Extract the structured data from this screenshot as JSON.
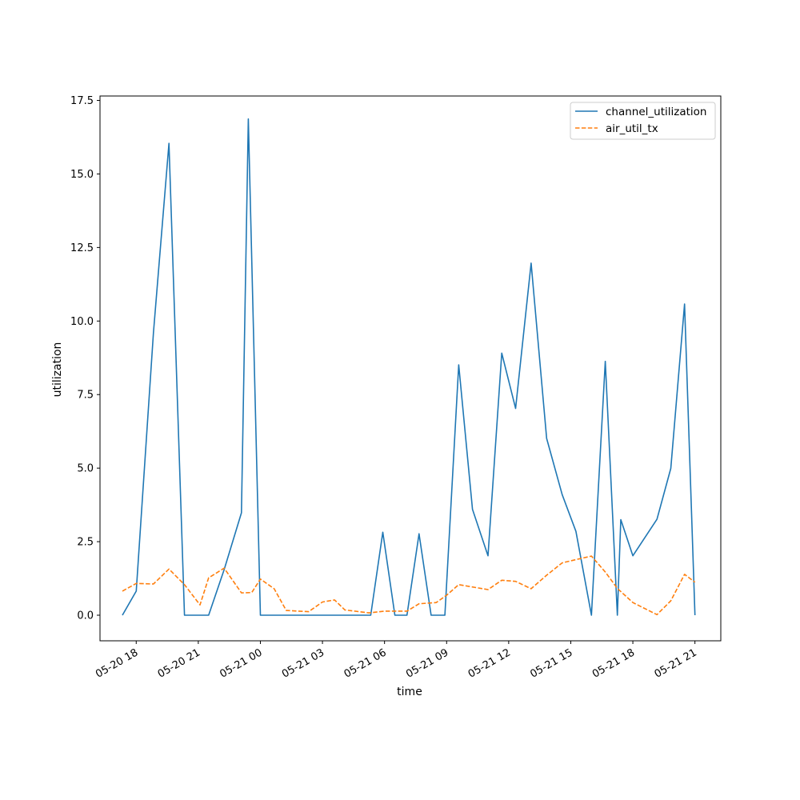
{
  "chart_data": {
    "type": "line",
    "title": "",
    "xlabel": "time",
    "ylabel": "utilization",
    "grid": false,
    "legend_position": "top-right",
    "x_tick_labels": [
      "05-20 18",
      "05-20 21",
      "05-21 00",
      "05-21 03",
      "05-21 06",
      "05-21 09",
      "05-21 12",
      "05-21 15",
      "05-21 18",
      "05-21 21"
    ],
    "y_tick_labels": [
      "0.0",
      "2.5",
      "5.0",
      "7.5",
      "10.0",
      "12.5",
      "15.0",
      "17.5"
    ],
    "ylim": [
      -0.87,
      17.65
    ],
    "xlim": [
      "2024-05-20 16:15",
      "2024-05-21 22:15"
    ],
    "series": [
      {
        "name": "channel_utilization",
        "color": "#1f77b4",
        "style": "solid",
        "x": [
          "2024-05-20 17:20",
          "2024-05-20 18:00",
          "2024-05-20 18:50",
          "2024-05-20 19:35",
          "2024-05-20 20:20",
          "2024-05-20 21:30",
          "2024-05-20 22:15",
          "2024-05-20 23:05",
          "2024-05-20 23:25",
          "2024-05-21 00:00",
          "2024-05-21 05:20",
          "2024-05-21 05:55",
          "2024-05-21 06:30",
          "2024-05-21 07:05",
          "2024-05-21 07:40",
          "2024-05-21 08:15",
          "2024-05-21 08:55",
          "2024-05-21 09:35",
          "2024-05-21 10:15",
          "2024-05-21 11:00",
          "2024-05-21 11:40",
          "2024-05-21 12:20",
          "2024-05-21 13:05",
          "2024-05-21 13:50",
          "2024-05-21 14:35",
          "2024-05-21 15:15",
          "2024-05-21 16:00",
          "2024-05-21 16:40",
          "2024-05-21 17:15",
          "2024-05-21 17:25",
          "2024-05-21 18:00",
          "2024-05-21 19:10",
          "2024-05-21 19:50",
          "2024-05-21 20:30",
          "2024-05-21 21:00"
        ],
        "values": [
          0.0,
          0.82,
          9.6,
          16.04,
          0.0,
          0.0,
          1.55,
          3.48,
          16.87,
          0.0,
          0.0,
          2.82,
          0.0,
          0.0,
          2.77,
          0.0,
          0.0,
          8.51,
          3.6,
          2.02,
          8.91,
          7.03,
          11.97,
          6.01,
          4.1,
          2.85,
          0.0,
          8.63,
          0.0,
          3.25,
          2.02,
          3.26,
          4.99,
          10.58,
          0.0
        ]
      },
      {
        "name": "air_util_tx",
        "color": "#ff7f0e",
        "style": "dashed",
        "x": [
          "2024-05-20 17:20",
          "2024-05-20 18:00",
          "2024-05-20 18:50",
          "2024-05-20 19:35",
          "2024-05-20 20:20",
          "2024-05-20 21:05",
          "2024-05-20 21:30",
          "2024-05-20 22:15",
          "2024-05-20 23:05",
          "2024-05-20 23:35",
          "2024-05-21 00:00",
          "2024-05-21 00:40",
          "2024-05-21 01:15",
          "2024-05-21 02:20",
          "2024-05-21 03:00",
          "2024-05-21 03:35",
          "2024-05-21 04:05",
          "2024-05-21 05:15",
          "2024-05-21 06:00",
          "2024-05-21 07:05",
          "2024-05-21 07:40",
          "2024-05-21 08:30",
          "2024-05-21 09:00",
          "2024-05-21 09:35",
          "2024-05-21 11:00",
          "2024-05-21 11:40",
          "2024-05-21 12:20",
          "2024-05-21 13:05",
          "2024-05-21 13:50",
          "2024-05-21 14:35",
          "2024-05-21 15:15",
          "2024-05-21 16:00",
          "2024-05-21 16:40",
          "2024-05-21 17:15",
          "2024-05-21 18:00",
          "2024-05-21 19:10",
          "2024-05-21 19:50",
          "2024-05-21 20:30",
          "2024-05-21 21:00"
        ],
        "values": [
          0.82,
          1.08,
          1.06,
          1.57,
          1.04,
          0.35,
          1.27,
          1.6,
          0.76,
          0.77,
          1.23,
          0.9,
          0.16,
          0.12,
          0.45,
          0.52,
          0.18,
          0.08,
          0.14,
          0.14,
          0.39,
          0.43,
          0.68,
          1.04,
          0.87,
          1.19,
          1.15,
          0.9,
          1.36,
          1.78,
          1.89,
          2.01,
          1.47,
          0.91,
          0.43,
          0.02,
          0.49,
          1.39,
          1.12
        ]
      }
    ]
  }
}
